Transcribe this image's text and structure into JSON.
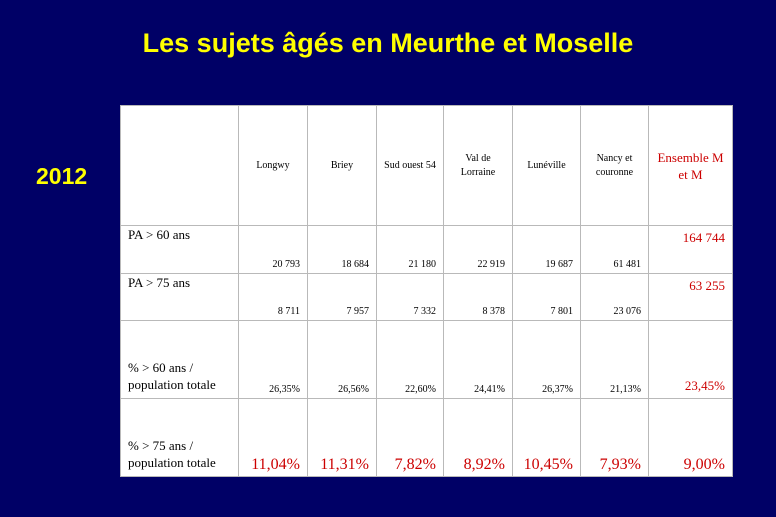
{
  "slide": {
    "title": "Les sujets âgés en Meurthe et Moselle",
    "year": "2012"
  },
  "table": {
    "columns": [
      "Longwy",
      "Briey",
      "Sud ouest 54",
      "Val de Lorraine",
      "Lunéville",
      "Nancy et couronne",
      "Ensemble M et M"
    ],
    "rows": [
      {
        "label": "PA > 60 ans",
        "values": [
          "20 793",
          "18 684",
          "21 180",
          "22 919",
          "19 687",
          "61 481",
          "164 744"
        ]
      },
      {
        "label": "PA > 75 ans",
        "values": [
          "8 711",
          "7 957",
          "7 332",
          "8 378",
          "7 801",
          "23 076",
          "63 255"
        ]
      },
      {
        "label": "% > 60 ans / population totale",
        "values": [
          "26,35%",
          "26,56%",
          "22,60%",
          "24,41%",
          "26,37%",
          "21,13%",
          "23,45%"
        ]
      },
      {
        "label": "% > 75 ans / population totale",
        "values": [
          "11,04%",
          "11,31%",
          "7,82%",
          "8,92%",
          "10,45%",
          "7,93%",
          "9,00%"
        ]
      }
    ]
  },
  "colors": {
    "background": "#000066",
    "title": "#ffff00",
    "highlight": "#cc0000"
  }
}
